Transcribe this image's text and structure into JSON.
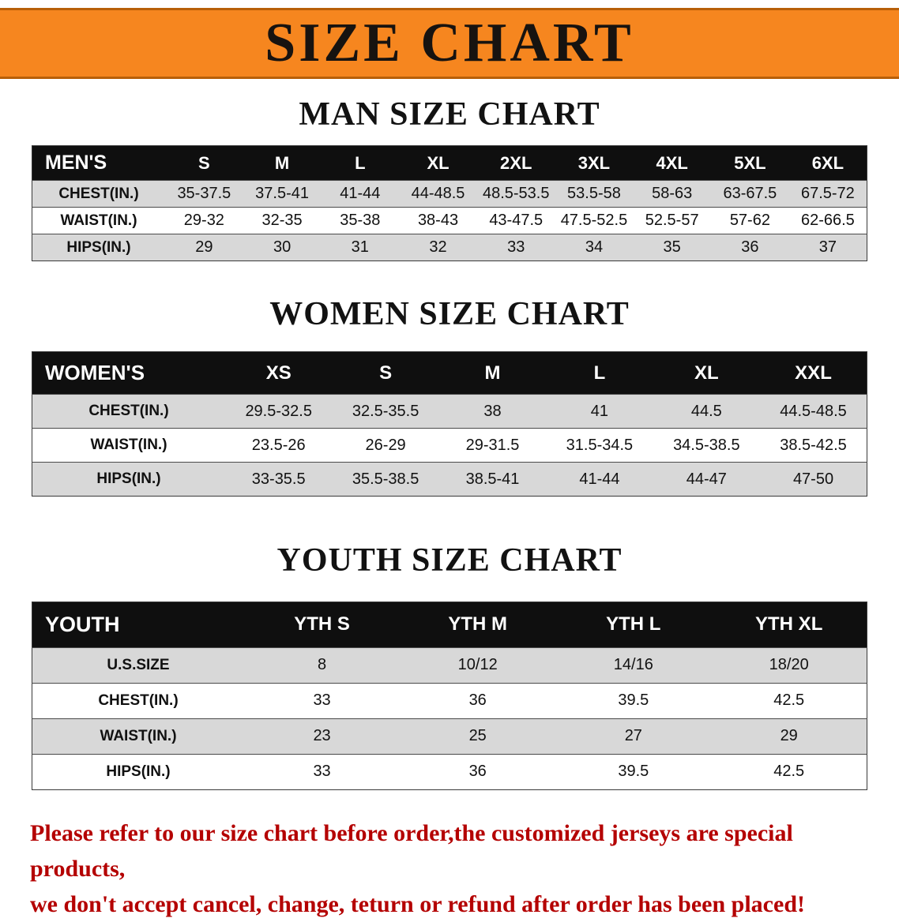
{
  "page": {
    "banner_title": "SIZE CHART",
    "footer_line1": "Please refer to our size chart before order,the customized jerseys are special products,",
    "footer_line2": "we don't accept cancel, change, teturn or refund after order has been placed!"
  },
  "colors": {
    "banner_orange": "#f6861f",
    "header_black": "#0f0f0f",
    "row_gray": "#d8d8d8",
    "footer_red": "#b40000"
  },
  "chart_data": [
    {
      "type": "table",
      "title": "MAN SIZE CHART",
      "header": [
        "MEN'S",
        "S",
        "M",
        "L",
        "XL",
        "2XL",
        "3XL",
        "4XL",
        "5XL",
        "6XL"
      ],
      "rows": [
        [
          "CHEST(IN.)",
          "35-37.5",
          "37.5-41",
          "41-44",
          "44-48.5",
          "48.5-53.5",
          "53.5-58",
          "58-63",
          "63-67.5",
          "67.5-72"
        ],
        [
          "WAIST(IN.)",
          "29-32",
          "32-35",
          "35-38",
          "38-43",
          "43-47.5",
          "47.5-52.5",
          "52.5-57",
          "57-62",
          "62-66.5"
        ],
        [
          "HIPS(IN.)",
          "29",
          "30",
          "31",
          "32",
          "33",
          "34",
          "35",
          "36",
          "37"
        ]
      ]
    },
    {
      "type": "table",
      "title": "WOMEN SIZE CHART",
      "header": [
        "WOMEN'S",
        "XS",
        "S",
        "M",
        "L",
        "XL",
        "XXL"
      ],
      "rows": [
        [
          "CHEST(IN.)",
          "29.5-32.5",
          "32.5-35.5",
          "38",
          "41",
          "44.5",
          "44.5-48.5"
        ],
        [
          "WAIST(IN.)",
          "23.5-26",
          "26-29",
          "29-31.5",
          "31.5-34.5",
          "34.5-38.5",
          "38.5-42.5"
        ],
        [
          "HIPS(IN.)",
          "33-35.5",
          "35.5-38.5",
          "38.5-41",
          "41-44",
          "44-47",
          "47-50"
        ]
      ]
    },
    {
      "type": "table",
      "title": "YOUTH SIZE CHART",
      "header": [
        "YOUTH",
        "YTH S",
        "YTH M",
        "YTH L",
        "YTH XL"
      ],
      "rows": [
        [
          "U.S.SIZE",
          "8",
          "10/12",
          "14/16",
          "18/20"
        ],
        [
          "CHEST(IN.)",
          "33",
          "36",
          "39.5",
          "42.5"
        ],
        [
          "WAIST(IN.)",
          "23",
          "25",
          "27",
          "29"
        ],
        [
          "HIPS(IN.)",
          "33",
          "36",
          "39.5",
          "42.5"
        ]
      ]
    }
  ]
}
